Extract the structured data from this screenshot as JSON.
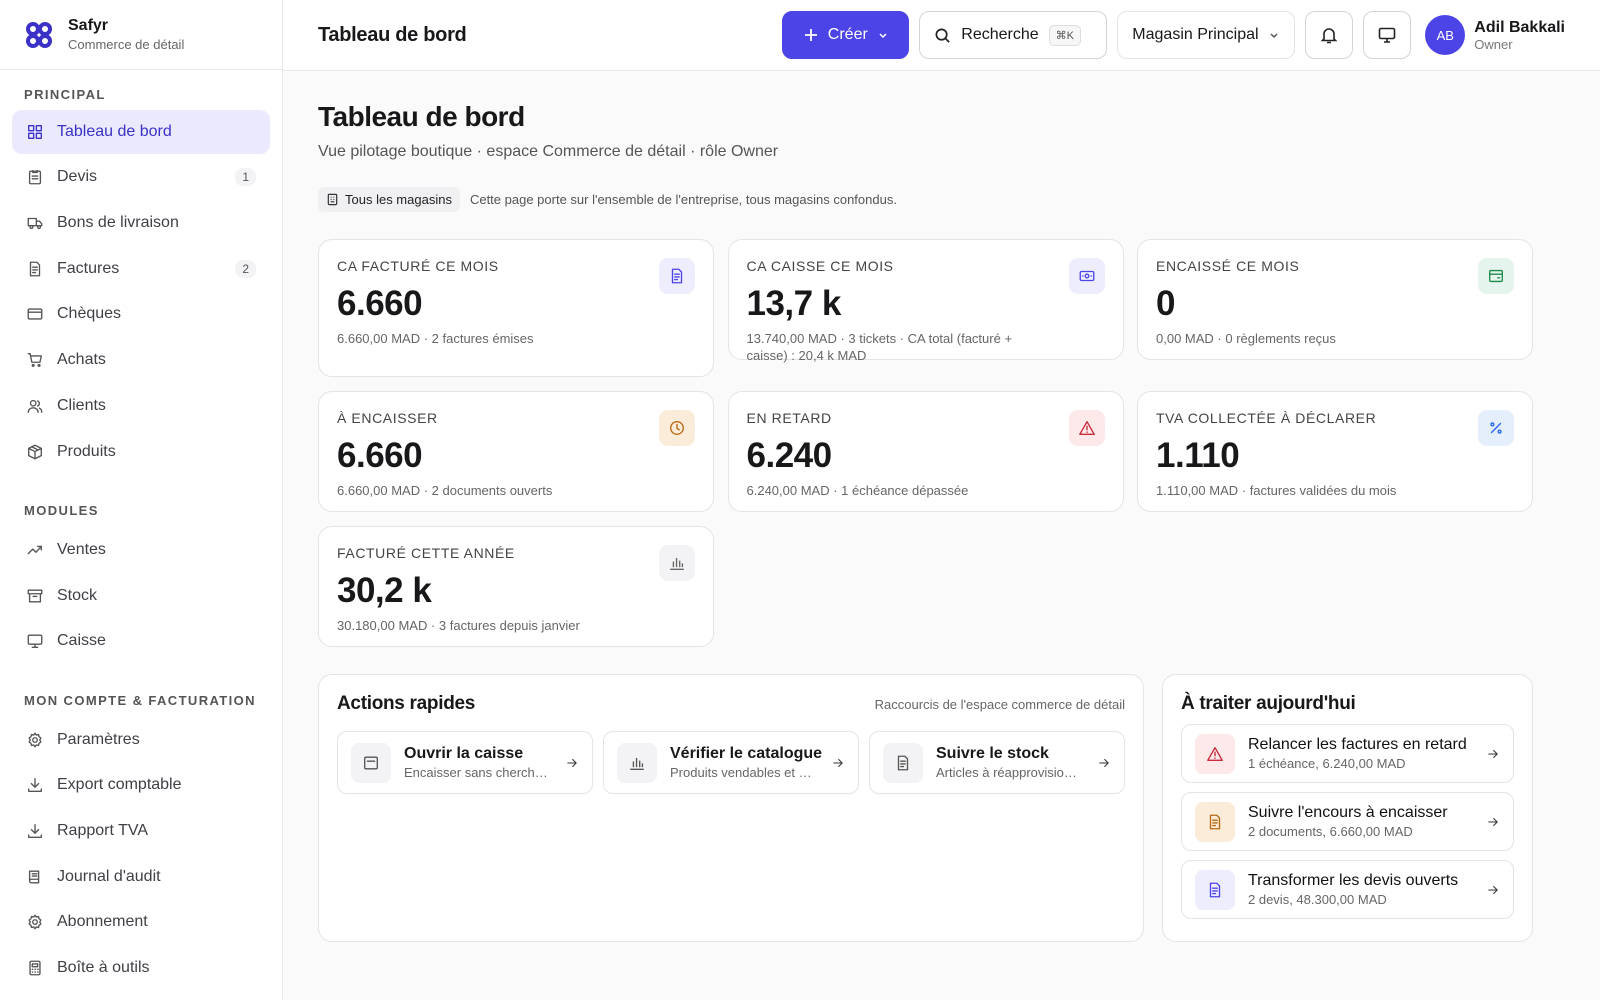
{
  "sidebar": {
    "brand": {
      "name": "Safyr",
      "subtitle": "Commerce de détail"
    },
    "sections": [
      {
        "title": "PRINCIPAL",
        "items": [
          {
            "label": "Tableau de bord"
          },
          {
            "label": "Devis",
            "badge": 1
          },
          {
            "label": "Bons de livraison"
          },
          {
            "label": "Factures",
            "badge": 2
          },
          {
            "label": "Chèques"
          },
          {
            "label": "Achats"
          },
          {
            "label": "Clients"
          },
          {
            "label": "Produits"
          }
        ]
      },
      {
        "title": "MODULES",
        "items": [
          {
            "label": "Ventes"
          },
          {
            "label": "Stock"
          },
          {
            "label": "Caisse"
          }
        ]
      },
      {
        "title": "MON COMPTE & FACTURATION",
        "items": [
          {
            "label": "Paramètres"
          },
          {
            "label": "Export comptable"
          },
          {
            "label": "Rapport TVA"
          },
          {
            "label": "Journal d'audit"
          },
          {
            "label": "Abonnement"
          },
          {
            "label": "Boîte à outils"
          }
        ]
      }
    ]
  },
  "topbar": {
    "title": "Tableau de bord",
    "create": "Créer",
    "search": "Recherche",
    "shortcut": "⌘K",
    "store": "Magasin Principal",
    "user": {
      "initials": "AB",
      "name": "Adil Bakkali",
      "role": "Owner"
    }
  },
  "header": {
    "title": "Tableau de bord",
    "subtitle": "Vue pilotage boutique · espace Commerce de détail · rôle Owner",
    "scope_tag": "Tous les magasins",
    "scope_note": "Cette page porte sur l'ensemble de l'entreprise, tous magasins confondus."
  },
  "kpis": [
    {
      "label": "CA FACTURÉ CE MOIS",
      "value": "6.660",
      "detail": "6.660,00 MAD · 2 factures émises"
    },
    {
      "label": "CA CAISSE CE MOIS",
      "value": "13,7 k",
      "detail": "13.740,00 MAD · 3 tickets · CA total (facturé + caisse) : 20,4 k MAD"
    },
    {
      "label": "ENCAISSÉ CE MOIS",
      "value": "0",
      "detail": "0,00 MAD · 0 règlements reçus"
    },
    {
      "label": "À ENCAISSER",
      "value": "6.660",
      "detail": "6.660,00 MAD · 2 documents ouverts"
    },
    {
      "label": "EN RETARD",
      "value": "6.240",
      "detail": "6.240,00 MAD · 1 échéance dépassée"
    },
    {
      "label": "TVA COLLECTÉE À DÉCLARER",
      "value": "1.110",
      "detail": "1.110,00 MAD · factures validées du mois"
    },
    {
      "label": "FACTURÉ CETTE ANNÉE",
      "value": "30,2 k",
      "detail": "30.180,00 MAD · 3 factures depuis janvier"
    }
  ],
  "quick_actions": {
    "title": "Actions rapides",
    "note": "Raccourcis de l'espace commerce de détail",
    "items": [
      {
        "title": "Ouvrir la caisse",
        "subtitle": "Encaisser sans cherch…"
      },
      {
        "title": "Vérifier le catalogue",
        "subtitle": "Produits vendables et …"
      },
      {
        "title": "Suivre le stock",
        "subtitle": "Articles à réapprovisio…"
      }
    ]
  },
  "today": {
    "title": "À traiter aujourd'hui",
    "items": [
      {
        "title": "Relancer les factures en retard",
        "subtitle": "1 échéance, 6.240,00 MAD"
      },
      {
        "title": "Suivre l'encours à encaisser",
        "subtitle": "2 documents, 6.660,00 MAD"
      },
      {
        "title": "Transformer les devis ouverts",
        "subtitle": "2 devis, 48.300,00 MAD"
      }
    ]
  }
}
